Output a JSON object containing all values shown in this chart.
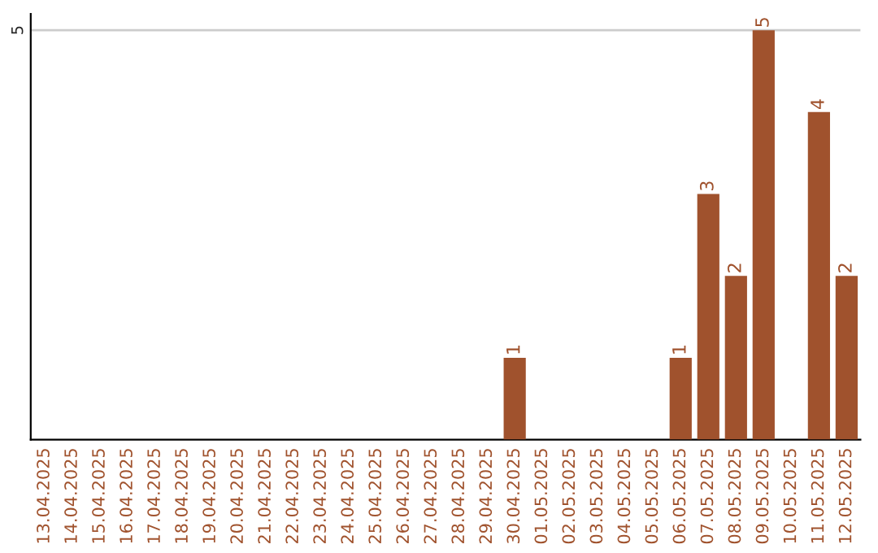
{
  "chart_data": {
    "type": "bar",
    "ylim": [
      0,
      5.2
    ],
    "categories": [
      "13.04.2025",
      "14.04.2025",
      "15.04.2025",
      "16.04.2025",
      "17.04.2025",
      "18.04.2025",
      "19.04.2025",
      "20.04.2025",
      "21.04.2025",
      "22.04.2025",
      "23.04.2025",
      "24.04.2025",
      "25.04.2025",
      "26.04.2025",
      "27.04.2025",
      "28.04.2025",
      "29.04.2025",
      "30.04.2025",
      "01.05.2025",
      "02.05.2025",
      "03.05.2025",
      "04.05.2025",
      "05.05.2025",
      "06.05.2025",
      "07.05.2025",
      "08.05.2025",
      "09.05.2025",
      "10.05.2025",
      "11.05.2025",
      "12.05.2025"
    ],
    "values": [
      null,
      null,
      null,
      null,
      null,
      null,
      null,
      null,
      null,
      null,
      null,
      null,
      null,
      null,
      null,
      null,
      null,
      1,
      null,
      null,
      null,
      null,
      null,
      1,
      3,
      2,
      5,
      null,
      4,
      2
    ],
    "value_labels": [
      null,
      null,
      null,
      null,
      null,
      null,
      null,
      null,
      null,
      null,
      null,
      null,
      null,
      null,
      null,
      null,
      null,
      "1",
      null,
      null,
      null,
      null,
      null,
      "1",
      "3",
      "2",
      "5",
      null,
      "4",
      "2"
    ],
    "color": "#a0522d",
    "yticks": [
      5
    ],
    "grid": "y"
  }
}
